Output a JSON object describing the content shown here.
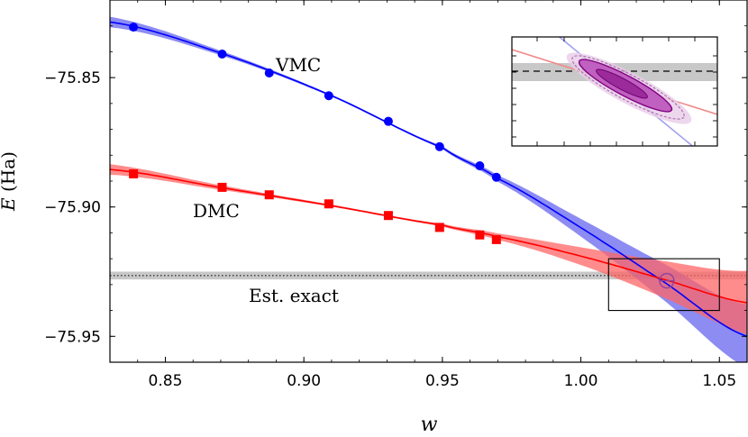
{
  "chart_data": {
    "type": "line",
    "xlabel": "w",
    "ylabel_var": "E",
    "ylabel_unit": "(Ha)",
    "xlim": [
      0.83,
      1.06
    ],
    "ylim": [
      -75.96,
      -75.82
    ],
    "xticks": [
      0.85,
      0.9,
      0.95,
      1.0,
      1.05
    ],
    "xtick_labels": [
      "0.85",
      "0.90",
      "0.95",
      "1.00",
      "1.05"
    ],
    "yticks": [
      -75.85,
      -75.9,
      -75.95
    ],
    "ytick_labels": [
      "−75.85",
      "−75.90",
      "−75.95"
    ],
    "series": [
      {
        "name": "VMC",
        "label": "VMC",
        "color": "#0000ff",
        "band_color": "#6666ee",
        "marker": "circle",
        "x": [
          0.8385,
          0.8705,
          0.8875,
          0.909,
          0.9305,
          0.949,
          0.9635,
          0.9695
        ],
        "y": [
          -75.8305,
          -75.8409,
          -75.8482,
          -75.857,
          -75.8669,
          -75.8767,
          -75.8841,
          -75.8885
        ],
        "fit_points": [
          [
            0.83,
            -75.8285
          ],
          [
            0.87,
            -75.8405
          ],
          [
            0.91,
            -75.857
          ],
          [
            0.95,
            -75.877
          ],
          [
            0.97,
            -75.889
          ],
          [
            1.0,
            -75.908
          ],
          [
            1.03,
            -75.929
          ],
          [
            1.06,
            -75.95
          ]
        ]
      },
      {
        "name": "DMC",
        "label": "DMC",
        "color": "#ff0000",
        "band_color": "#ff6666",
        "marker": "square",
        "x": [
          0.8385,
          0.8705,
          0.8875,
          0.909,
          0.9305,
          0.949,
          0.9635,
          0.9695
        ],
        "y": [
          -75.8872,
          -75.8924,
          -75.8953,
          -75.8988,
          -75.9033,
          -75.9079,
          -75.9108,
          -75.9126
        ],
        "fit_points": [
          [
            0.83,
            -75.8855
          ],
          [
            0.87,
            -75.8925
          ],
          [
            0.91,
            -75.8995
          ],
          [
            0.95,
            -75.907
          ],
          [
            0.97,
            -75.9115
          ],
          [
            1.0,
            -75.919
          ],
          [
            1.03,
            -75.928
          ],
          [
            1.06,
            -75.937
          ]
        ]
      }
    ],
    "exact": {
      "label": "Est. exact",
      "y": -75.9265,
      "band": [
        -75.925,
        -75.928
      ]
    },
    "crossing": {
      "x": 1.031,
      "y": -75.9285
    },
    "zoom_box": {
      "x": [
        1.01,
        1.05
      ],
      "y": [
        -75.94,
        -75.92
      ]
    }
  }
}
